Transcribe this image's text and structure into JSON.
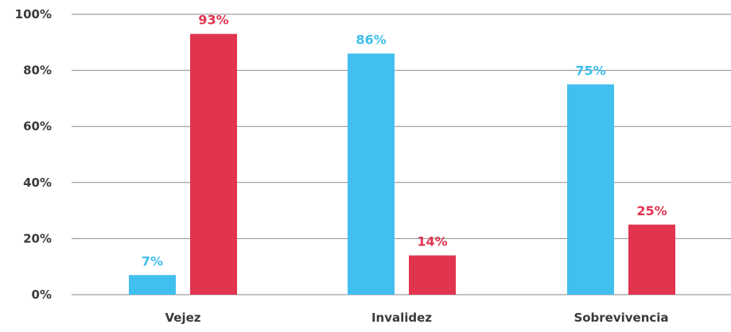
{
  "chart_data": {
    "type": "bar",
    "categories": [
      "Vejez",
      "Invalidez",
      "Sobrevivencia"
    ],
    "series": [
      {
        "color": "#41bfee",
        "values": [
          7,
          86,
          75
        ],
        "labels": [
          "7%",
          "86%",
          "75%"
        ]
      },
      {
        "color": "#e0344f",
        "values": [
          93,
          14,
          25
        ],
        "labels": [
          "93%",
          "14%",
          "25%"
        ]
      }
    ],
    "ylim": [
      0,
      100
    ],
    "yticks": [
      0,
      20,
      40,
      60,
      80,
      100
    ],
    "ytick_labels": [
      "0%",
      "20%",
      "40%",
      "60%",
      "80%",
      "100%"
    ],
    "grid": true,
    "legend": "none"
  }
}
